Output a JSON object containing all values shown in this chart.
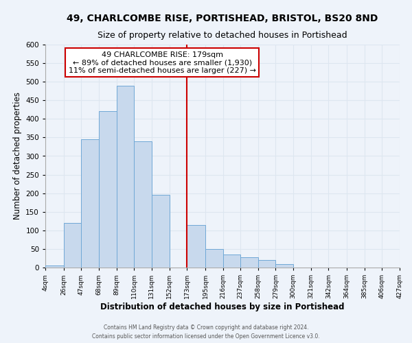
{
  "title": "49, CHARLCOMBE RISE, PORTISHEAD, BRISTOL, BS20 8ND",
  "subtitle": "Size of property relative to detached houses in Portishead",
  "xlabel": "Distribution of detached houses by size in Portishead",
  "ylabel": "Number of detached properties",
  "bar_edges": [
    4,
    26,
    47,
    68,
    89,
    110,
    131,
    152,
    173,
    195,
    216,
    237,
    258,
    279,
    300,
    321,
    342,
    364,
    385,
    406,
    427
  ],
  "bar_heights": [
    5,
    120,
    345,
    420,
    490,
    340,
    195,
    0,
    115,
    50,
    35,
    27,
    20,
    10,
    0,
    0,
    0,
    0,
    0,
    0
  ],
  "bar_color": "#c8d9ed",
  "bar_edge_color": "#6fa8d6",
  "vline_x": 173,
  "vline_color": "#cc0000",
  "annotation_title": "49 CHARLCOMBE RISE: 179sqm",
  "annotation_line1": "← 89% of detached houses are smaller (1,930)",
  "annotation_line2": "11% of semi-detached houses are larger (227) →",
  "annotation_box_color": "#ffffff",
  "annotation_box_edge": "#cc0000",
  "ylim": [
    0,
    600
  ],
  "yticks": [
    0,
    50,
    100,
    150,
    200,
    250,
    300,
    350,
    400,
    450,
    500,
    550,
    600
  ],
  "xtick_labels": [
    "4sqm",
    "26sqm",
    "47sqm",
    "68sqm",
    "89sqm",
    "110sqm",
    "131sqm",
    "152sqm",
    "173sqm",
    "195sqm",
    "216sqm",
    "237sqm",
    "258sqm",
    "279sqm",
    "300sqm",
    "321sqm",
    "342sqm",
    "364sqm",
    "385sqm",
    "406sqm",
    "427sqm"
  ],
  "footer1": "Contains HM Land Registry data © Crown copyright and database right 2024.",
  "footer2": "Contains public sector information licensed under the Open Government Licence v3.0.",
  "grid_color": "#dde6f0",
  "bg_color": "#eef3fa",
  "title_fontsize": 10,
  "subtitle_fontsize": 9,
  "xlabel_fontsize": 8.5,
  "ylabel_fontsize": 8.5,
  "annotation_fontsize": 8
}
